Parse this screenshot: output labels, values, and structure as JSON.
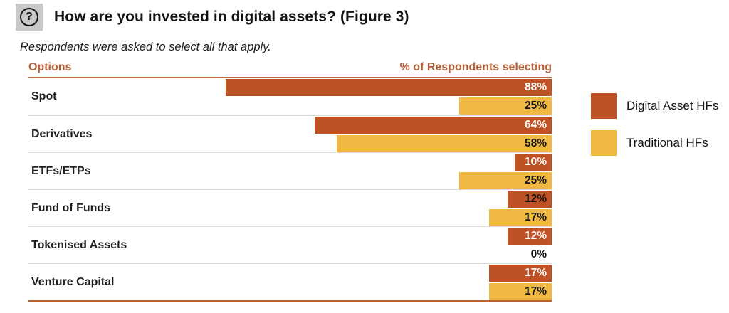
{
  "header": {
    "icon": "question-mark-icon",
    "title": "How are you invested in digital assets? (Figure 3)",
    "question_glyph": "?",
    "subtitle": "Respondents were asked to select all that apply."
  },
  "table_headers": {
    "options": "Options",
    "respondents": "% of Respondents selecting"
  },
  "legend": {
    "items": [
      {
        "label": "Digital Asset HFs",
        "color": "#bf5224"
      },
      {
        "label": "Traditional HFs",
        "color": "#f1b844"
      }
    ],
    "position": "right"
  },
  "colors": {
    "digital_bar": "#bf5224",
    "traditional_bar": "#f1b844",
    "header_text": "#b75f38",
    "header_rule": "#bc6a44",
    "bottom_rule": "#ba622f",
    "row_separator": "#dcdcdc",
    "icon_box": "#c9c9c9"
  },
  "chart_data": {
    "type": "bar",
    "orientation": "horizontal",
    "bar_alignment": "right",
    "title": "How are you invested in digital assets? (Figure 3)",
    "subtitle": "Respondents were asked to select all that apply.",
    "xlabel": "% of Respondents selecting",
    "ylabel": "Options",
    "xlim": [
      0,
      100
    ],
    "grid": false,
    "value_suffix": "%",
    "legend_position": "right",
    "categories": [
      "Spot",
      "Derivatives",
      "ETFs/ETPs",
      "Fund of Funds",
      "Tokenised Assets",
      "Venture Capital"
    ],
    "series": [
      {
        "name": "Digital Asset HFs",
        "color": "#bf5224",
        "values": [
          88,
          64,
          10,
          12,
          12,
          17
        ],
        "display": [
          "88%",
          "64%",
          "10%",
          "12%",
          "12%",
          "17%"
        ],
        "label_colors": [
          "#ffffff",
          "#ffffff",
          "#ffffff",
          "#141414",
          "#ffffff",
          "#ffffff"
        ]
      },
      {
        "name": "Traditional HFs",
        "color": "#f1b844",
        "values": [
          25,
          58,
          25,
          17,
          0,
          17
        ],
        "display": [
          "25%",
          "58%",
          "25%",
          "17%",
          "0%",
          "17%"
        ],
        "label_colors": [
          "#141414",
          "#141414",
          "#141414",
          "#141414",
          "#141414",
          "#141414"
        ]
      }
    ]
  }
}
